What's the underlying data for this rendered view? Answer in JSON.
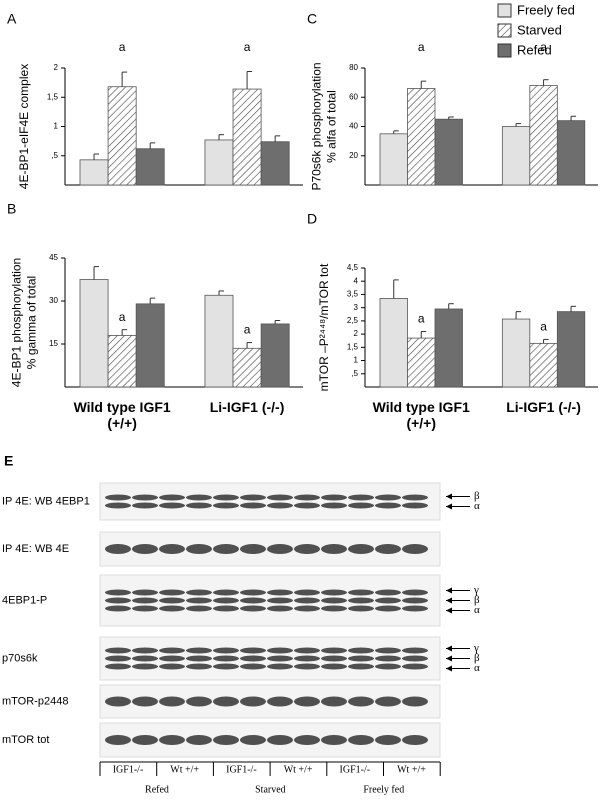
{
  "chart_data": [
    {
      "type": "bar",
      "panel": "A",
      "ylabel": [
        "4E-BP1-eIF4E complex"
      ],
      "categories": [
        null,
        null
      ],
      "ylim": [
        0,
        2
      ],
      "yticks": [
        {
          "value": 0.5,
          "label": ",5"
        },
        1,
        {
          "value": 1.5,
          "label": "1,5"
        },
        2
      ],
      "annotations": [
        "a",
        "a"
      ],
      "series": [
        {
          "color": "#e2e2e2",
          "values": [
            0.43,
            0.77
          ],
          "errors": [
            0.1,
            0.09
          ]
        },
        {
          "color": "#ffffff",
          "pattern": "hatch",
          "values": [
            1.68,
            1.64
          ],
          "errors": [
            0.25,
            0.3
          ]
        },
        {
          "color": "#6e6e6e",
          "values": [
            0.62,
            0.74
          ],
          "errors": [
            0.1,
            0.1
          ]
        }
      ]
    },
    {
      "type": "bar",
      "panel": "B",
      "ylabel": [
        "4E-BP1 phosphorylation",
        "% gamma of total"
      ],
      "categories": [
        "Wild type IGF1 (+/+)",
        "Li-IGF1 (-/-)"
      ],
      "ylim": [
        0,
        45
      ],
      "yticks": [
        15,
        30,
        45
      ],
      "annotations": [
        "a",
        "a"
      ],
      "series": [
        {
          "color": "#e2e2e2",
          "values": [
            37.5,
            32
          ],
          "errors": [
            4.5,
            1.5
          ]
        },
        {
          "color": "#ffffff",
          "pattern": "hatch",
          "values": [
            18,
            13.5
          ],
          "errors": [
            2,
            2
          ]
        },
        {
          "color": "#6e6e6e",
          "values": [
            29,
            22
          ],
          "errors": [
            2,
            1.2
          ]
        }
      ]
    },
    {
      "type": "bar",
      "panel": "C",
      "ylabel": [
        "P70s6k phosphorylation",
        "% alfa of total"
      ],
      "categories": [
        null,
        null
      ],
      "ylim": [
        0,
        80
      ],
      "yticks": [
        20,
        40,
        60,
        80
      ],
      "annotations": [
        "a",
        "a"
      ],
      "series": [
        {
          "name": "Freely fed",
          "color": "#e2e2e2",
          "values": [
            35,
            40
          ],
          "errors": [
            2,
            2
          ]
        },
        {
          "name": "Starved",
          "color": "#ffffff",
          "pattern": "hatch",
          "values": [
            66,
            68
          ],
          "errors": [
            5,
            4
          ]
        },
        {
          "name": "Refed",
          "color": "#6e6e6e",
          "values": [
            45,
            44
          ],
          "errors": [
            1.5,
            3
          ]
        }
      ]
    },
    {
      "type": "bar",
      "panel": "D",
      "ylabel": [
        "mTOR –P²⁴⁴⁸/mTOR tot"
      ],
      "categories": [
        "Wild type IGF1 (+/+)",
        "Li-IGF1 (-/-)"
      ],
      "ylim": [
        0,
        4.5
      ],
      "yticks": [
        {
          "value": 0.5,
          "label": ",5"
        },
        1,
        {
          "value": 1.5,
          "label": "1,5"
        },
        2,
        {
          "value": 2.5,
          "label": "2,5"
        },
        3,
        {
          "value": 3.5,
          "label": "3,5"
        },
        4,
        {
          "value": 4.5,
          "label": "4,5"
        }
      ],
      "annotations": [
        "a",
        "a"
      ],
      "series": [
        {
          "color": "#e2e2e2",
          "values": [
            3.35,
            2.57
          ],
          "errors": [
            0.7,
            0.28
          ]
        },
        {
          "color": "#ffffff",
          "pattern": "hatch",
          "values": [
            1.85,
            1.65
          ],
          "errors": [
            0.25,
            0.15
          ]
        },
        {
          "color": "#6e6e6e",
          "values": [
            2.95,
            2.85
          ],
          "errors": [
            0.2,
            0.2
          ]
        }
      ]
    }
  ],
  "blot": {
    "panel": "E",
    "rows": [
      {
        "name": "IP 4E: WB 4EBP1",
        "bands": [
          "β",
          "α"
        ]
      },
      {
        "name": "IP 4E: WB 4E",
        "bands": []
      },
      {
        "name": "4EBP1-P",
        "bands": [
          "γ",
          "β",
          "α"
        ]
      },
      {
        "name": "p70s6k",
        "bands": [
          "γ",
          "β",
          "α"
        ]
      },
      {
        "name": "mTOR-p2448",
        "bands": []
      },
      {
        "name": "mTOR tot",
        "bands": []
      }
    ],
    "lanes": [
      "IGF1-/-",
      "Wt +/+",
      "IGF1-/-",
      "Wt +/+",
      "IGF1-/-",
      "Wt +/+"
    ],
    "groups": [
      "Refed",
      "Starved",
      "Freely fed"
    ]
  }
}
